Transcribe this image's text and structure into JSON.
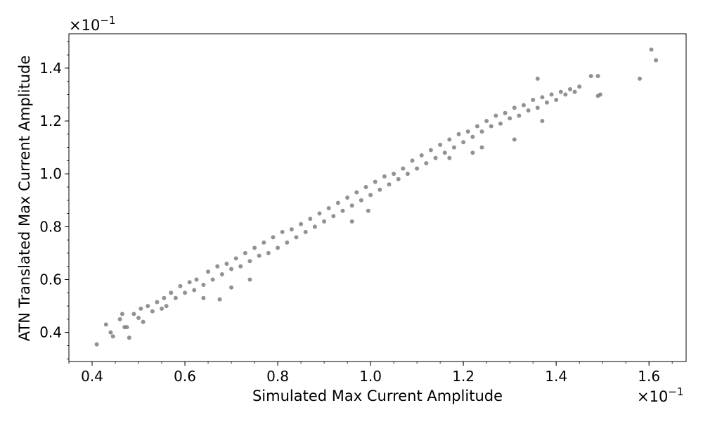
{
  "chart_data": {
    "type": "scatter",
    "title": "",
    "xlabel": "Simulated Max Current Amplitude",
    "ylabel": "ATN Translated Max Current Amplitude",
    "x_multiplier": "×10",
    "x_exponent": "−1",
    "y_multiplier": "×10",
    "y_exponent": "−1",
    "xlim": [
      0.35,
      1.68
    ],
    "ylim": [
      0.29,
      1.53
    ],
    "x_ticks": [
      0.4,
      0.6,
      0.8,
      1.0,
      1.2,
      1.4,
      1.6
    ],
    "x_tick_labels": [
      "0.4",
      "0.6",
      "0.8",
      "1.0",
      "1.2",
      "1.4",
      "1.6"
    ],
    "y_ticks": [
      0.4,
      0.6,
      0.8,
      1.0,
      1.2,
      1.4
    ],
    "y_tick_labels": [
      "0.4",
      "0.6",
      "0.8",
      "1.0",
      "1.2",
      "1.4"
    ],
    "grid": false,
    "legend": "none",
    "point_color": "#7f7f7f",
    "series": [
      {
        "points": [
          [
            0.41,
            0.355
          ],
          [
            0.43,
            0.43
          ],
          [
            0.44,
            0.4
          ],
          [
            0.445,
            0.385
          ],
          [
            0.46,
            0.45
          ],
          [
            0.465,
            0.47
          ],
          [
            0.47,
            0.42
          ],
          [
            0.475,
            0.42
          ],
          [
            0.48,
            0.38
          ],
          [
            0.49,
            0.47
          ],
          [
            0.5,
            0.455
          ],
          [
            0.505,
            0.49
          ],
          [
            0.51,
            0.44
          ],
          [
            0.52,
            0.5
          ],
          [
            0.53,
            0.48
          ],
          [
            0.54,
            0.515
          ],
          [
            0.55,
            0.49
          ],
          [
            0.555,
            0.53
          ],
          [
            0.56,
            0.5
          ],
          [
            0.57,
            0.55
          ],
          [
            0.58,
            0.53
          ],
          [
            0.59,
            0.575
          ],
          [
            0.6,
            0.55
          ],
          [
            0.61,
            0.59
          ],
          [
            0.62,
            0.56
          ],
          [
            0.625,
            0.6
          ],
          [
            0.64,
            0.58
          ],
          [
            0.65,
            0.63
          ],
          [
            0.66,
            0.6
          ],
          [
            0.67,
            0.65
          ],
          [
            0.675,
            0.525
          ],
          [
            0.68,
            0.62
          ],
          [
            0.69,
            0.66
          ],
          [
            0.7,
            0.64
          ],
          [
            0.71,
            0.68
          ],
          [
            0.72,
            0.65
          ],
          [
            0.73,
            0.7
          ],
          [
            0.74,
            0.67
          ],
          [
            0.75,
            0.72
          ],
          [
            0.76,
            0.69
          ],
          [
            0.77,
            0.74
          ],
          [
            0.78,
            0.7
          ],
          [
            0.79,
            0.76
          ],
          [
            0.8,
            0.72
          ],
          [
            0.81,
            0.78
          ],
          [
            0.82,
            0.74
          ],
          [
            0.83,
            0.79
          ],
          [
            0.84,
            0.76
          ],
          [
            0.85,
            0.81
          ],
          [
            0.86,
            0.78
          ],
          [
            0.87,
            0.83
          ],
          [
            0.88,
            0.8
          ],
          [
            0.89,
            0.85
          ],
          [
            0.9,
            0.82
          ],
          [
            0.91,
            0.87
          ],
          [
            0.92,
            0.84
          ],
          [
            0.93,
            0.89
          ],
          [
            0.94,
            0.86
          ],
          [
            0.95,
            0.91
          ],
          [
            0.96,
            0.88
          ],
          [
            0.97,
            0.93
          ],
          [
            0.98,
            0.9
          ],
          [
            0.99,
            0.95
          ],
          [
            1.0,
            0.92
          ],
          [
            1.01,
            0.97
          ],
          [
            1.02,
            0.94
          ],
          [
            1.03,
            0.99
          ],
          [
            1.04,
            0.96
          ],
          [
            1.05,
            1.0
          ],
          [
            1.06,
            0.98
          ],
          [
            1.07,
            1.02
          ],
          [
            1.08,
            1.0
          ],
          [
            1.09,
            1.05
          ],
          [
            1.1,
            1.02
          ],
          [
            1.11,
            1.07
          ],
          [
            1.12,
            1.04
          ],
          [
            1.13,
            1.09
          ],
          [
            1.14,
            1.06
          ],
          [
            1.15,
            1.11
          ],
          [
            1.16,
            1.08
          ],
          [
            1.17,
            1.13
          ],
          [
            1.18,
            1.1
          ],
          [
            1.19,
            1.15
          ],
          [
            1.2,
            1.12
          ],
          [
            1.21,
            1.16
          ],
          [
            1.22,
            1.14
          ],
          [
            1.23,
            1.18
          ],
          [
            1.24,
            1.16
          ],
          [
            1.25,
            1.2
          ],
          [
            1.26,
            1.18
          ],
          [
            1.27,
            1.22
          ],
          [
            1.28,
            1.19
          ],
          [
            1.29,
            1.23
          ],
          [
            1.3,
            1.21
          ],
          [
            1.31,
            1.25
          ],
          [
            1.32,
            1.22
          ],
          [
            1.33,
            1.26
          ],
          [
            1.34,
            1.24
          ],
          [
            1.35,
            1.28
          ],
          [
            1.36,
            1.25
          ],
          [
            1.37,
            1.29
          ],
          [
            1.38,
            1.27
          ],
          [
            1.39,
            1.3
          ],
          [
            1.4,
            1.28
          ],
          [
            1.41,
            1.31
          ],
          [
            1.42,
            1.3
          ],
          [
            1.43,
            1.32
          ],
          [
            1.44,
            1.31
          ],
          [
            1.45,
            1.33
          ],
          [
            1.36,
            1.36
          ],
          [
            1.475,
            1.37
          ],
          [
            1.49,
            1.37
          ],
          [
            1.49,
            1.295
          ],
          [
            1.495,
            1.3
          ],
          [
            1.58,
            1.36
          ],
          [
            1.605,
            1.47
          ],
          [
            1.615,
            1.43
          ],
          [
            1.17,
            1.06
          ],
          [
            1.22,
            1.08
          ],
          [
            1.24,
            1.1
          ],
          [
            1.31,
            1.13
          ],
          [
            1.37,
            1.2
          ],
          [
            0.64,
            0.53
          ],
          [
            0.7,
            0.57
          ],
          [
            0.96,
            0.82
          ],
          [
            0.995,
            0.86
          ],
          [
            0.74,
            0.6
          ]
        ]
      }
    ]
  }
}
